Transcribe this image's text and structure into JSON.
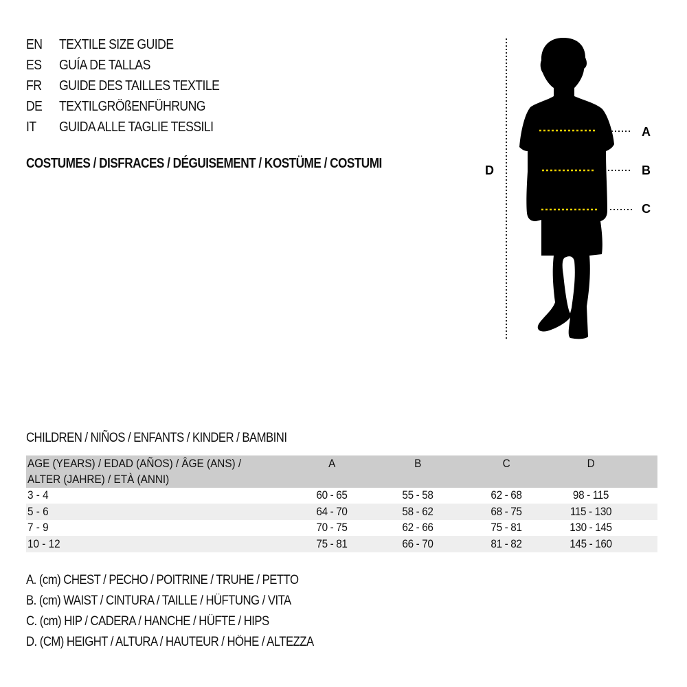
{
  "guide_titles": [
    {
      "code": "EN",
      "text": "TEXTILE SIZE GUIDE"
    },
    {
      "code": "ES",
      "text": "GUÍA DE TALLAS"
    },
    {
      "code": "FR",
      "text": "GUIDE DES TAILLES TEXTILE"
    },
    {
      "code": "DE",
      "text": "TEXTILGRÖßENFÜHRUNG"
    },
    {
      "code": "IT",
      "text": "GUIDA ALLE TAGLIE TESSILI"
    }
  ],
  "category": "COSTUMES / DISFRACES / DÉGUISEMENT / KOSTÜME / COSTUMI",
  "figure": {
    "labels": {
      "a": "A",
      "b": "B",
      "c": "C",
      "d": "D"
    },
    "measure_line_color": "#f5d000",
    "silhouette_color": "#000000"
  },
  "table": {
    "caption": "CHILDREN / NIÑOS / ENFANTS / KINDER / BAMBINI",
    "header": {
      "age_line1": "AGE (YEARS) / EDAD (AÑOS) / ÂGE (ANS) /",
      "age_line2": "ALTER (JAHRE) / ETÀ (ANNI)",
      "cols": [
        "A",
        "B",
        "C",
        "D"
      ]
    },
    "rows": [
      {
        "age": "3 - 4",
        "values": [
          "60 - 65",
          "55 - 58",
          "62 - 68",
          "98 - 115"
        ]
      },
      {
        "age": "5 - 6",
        "values": [
          "64 - 70",
          "58 - 62",
          "68 - 75",
          "115 - 130"
        ]
      },
      {
        "age": "7 - 9",
        "values": [
          "70 - 75",
          "62 - 66",
          "75 - 81",
          "130 - 145"
        ]
      },
      {
        "age": "10 - 12",
        "values": [
          "75 - 81",
          "66 - 70",
          "81 - 82",
          "145 - 160"
        ]
      }
    ],
    "header_bg": "#cccccc",
    "stripe_bg": "#eeeeee"
  },
  "legend": [
    "A. (cm) CHEST / PECHO / POITRINE / TRUHE / PETTO",
    "B. (cm) WAIST / CINTURA / TAILLE / HÜFTUNG / VITA",
    "C. (cm) HIP / CADERA / HANCHE / HÜFTE / HIPS",
    "D. (CM) HEIGHT / ALTURA / HAUTEUR / HÖHE / ALTEZZA"
  ]
}
